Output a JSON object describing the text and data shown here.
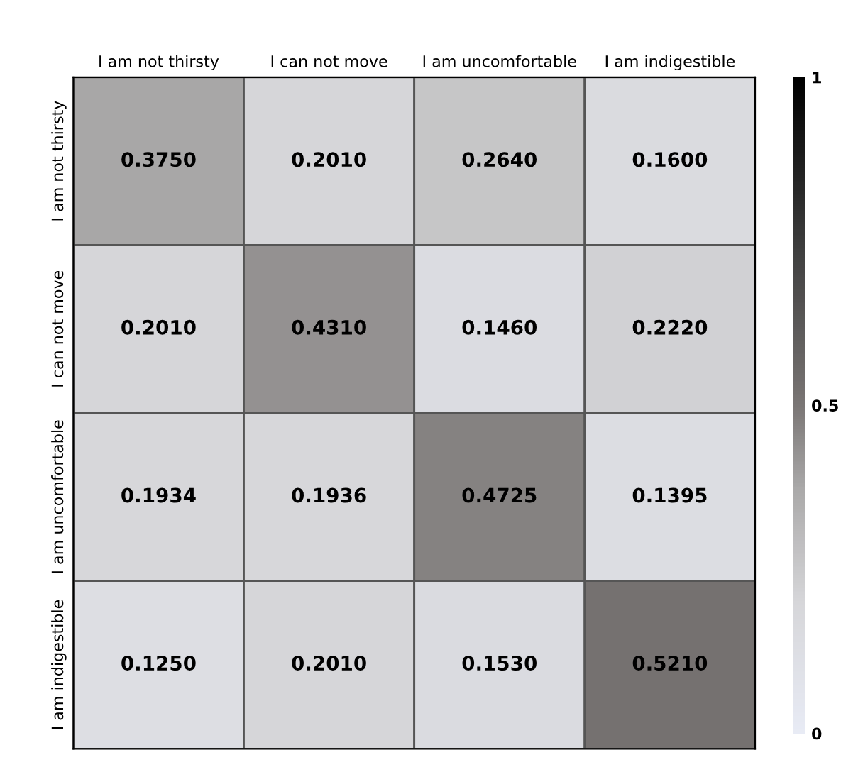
{
  "chart_data": {
    "type": "heatmap",
    "categories": [
      "I am not thirsty",
      "I can not move",
      "I am uncomfortable",
      "I am indigestible"
    ],
    "y_categories": [
      "I am not thirsty",
      "I can not move",
      "I am uncomfortable",
      "I am indigestible"
    ],
    "cells": [
      [
        0.375,
        0.201,
        0.264,
        0.16
      ],
      [
        0.201,
        0.431,
        0.146,
        0.222
      ],
      [
        0.1934,
        0.1936,
        0.4725,
        0.1395
      ],
      [
        0.125,
        0.201,
        0.153,
        0.521
      ]
    ],
    "cell_labels": [
      [
        "0.3750",
        "0.2010",
        "0.2640",
        "0.1600"
      ],
      [
        "0.2010",
        "0.4310",
        "0.1460",
        "0.2220"
      ],
      [
        "0.1934",
        "0.1936",
        "0.4725",
        "0.1395"
      ],
      [
        "0.1250",
        "0.2010",
        "0.1530",
        "0.5210"
      ]
    ],
    "clim": [
      0,
      1
    ],
    "cticks": [
      0,
      0.5,
      1
    ]
  }
}
